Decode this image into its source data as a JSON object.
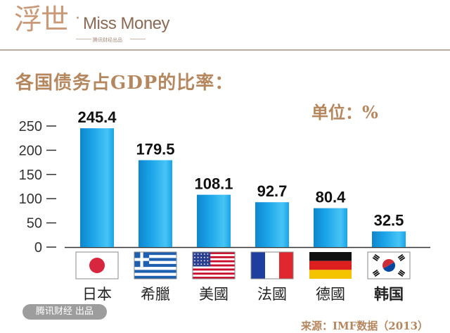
{
  "brand": {
    "logo_cn": "浮世",
    "logo_dot": "·",
    "logo_en": "Miss Money",
    "logo_sub": "腾讯财经出品"
  },
  "unit_label": "单位：%",
  "watermark": "腾讯财经 出品",
  "source": "来源：IMF数据（2013）",
  "colors": {
    "bar_main": "#1aa3e8",
    "bar_light": "#47c4f5",
    "bar_dark": "#0f86cc",
    "accent_text": "#b5875f"
  },
  "chart_data": {
    "type": "bar",
    "title": "各国债务占GDP的比率：",
    "categories": [
      "日本",
      "希臘",
      "美國",
      "法國",
      "德國",
      "韩国"
    ],
    "flags": [
      "japan-flag",
      "greece-flag",
      "usa-flag",
      "france-flag",
      "germany-flag",
      "korea-flag"
    ],
    "values": [
      245.4,
      179.5,
      108.1,
      92.7,
      80.4,
      32.5
    ],
    "value_labels": [
      "245.4",
      "179.5",
      "108.1",
      "92.7",
      "80.4",
      "32.5"
    ],
    "yticks": [
      "0",
      "50",
      "100",
      "150",
      "200",
      "250"
    ],
    "ylim": [
      0,
      250
    ],
    "grid": false,
    "legend": "none"
  }
}
